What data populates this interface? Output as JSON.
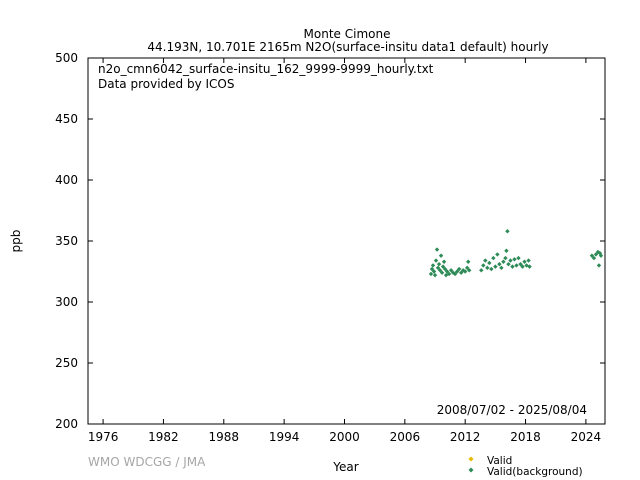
{
  "chart_data": {
    "type": "scatter",
    "title": "Monte Cimone",
    "subtitle": "44.193N, 10.701E 2165m    N2O(surface-insitu data1 default) hourly",
    "xlabel": "Year",
    "ylabel": "ppb",
    "xlim": [
      1974.5,
      2025.9
    ],
    "ylim": [
      200,
      500
    ],
    "xticks": [
      1976,
      1982,
      1988,
      1994,
      2000,
      2006,
      2012,
      2018,
      2024
    ],
    "yticks": [
      200,
      250,
      300,
      350,
      400,
      450,
      500
    ],
    "grid": false,
    "annotations": {
      "filename": "n2o_cmn6042_surface-insitu_162_9999-9999_hourly.txt",
      "provider": "Data provided by ICOS",
      "period": "2008/07/02 - 2025/08/04",
      "credit": "WMO WDCGG / JMA"
    },
    "legend": {
      "placement": "bottom-right",
      "entries": [
        {
          "name": "Valid",
          "color": "#e6b800"
        },
        {
          "name": "Valid(background)",
          "color": "#2e8b57"
        }
      ]
    },
    "series": [
      {
        "name": "Valid(background)",
        "color": "#2e8b57",
        "points": [
          [
            2008.6,
            323
          ],
          [
            2008.7,
            327
          ],
          [
            2008.8,
            330
          ],
          [
            2008.9,
            325
          ],
          [
            2009.0,
            322
          ],
          [
            2009.1,
            334
          ],
          [
            2009.2,
            343
          ],
          [
            2009.3,
            328
          ],
          [
            2009.4,
            331
          ],
          [
            2009.5,
            326
          ],
          [
            2009.6,
            338
          ],
          [
            2009.7,
            324
          ],
          [
            2009.8,
            329
          ],
          [
            2009.9,
            333
          ],
          [
            2010.0,
            327
          ],
          [
            2010.1,
            322
          ],
          [
            2010.2,
            325
          ],
          [
            2010.4,
            323
          ],
          [
            2010.6,
            326
          ],
          [
            2010.8,
            324
          ],
          [
            2011.0,
            323
          ],
          [
            2011.2,
            325
          ],
          [
            2011.4,
            327
          ],
          [
            2011.6,
            324
          ],
          [
            2011.8,
            326
          ],
          [
            2012.0,
            325
          ],
          [
            2012.2,
            328
          ],
          [
            2012.3,
            333
          ],
          [
            2012.4,
            326
          ],
          [
            2013.6,
            326
          ],
          [
            2013.8,
            330
          ],
          [
            2014.0,
            334
          ],
          [
            2014.2,
            328
          ],
          [
            2014.4,
            332
          ],
          [
            2014.6,
            327
          ],
          [
            2014.8,
            336
          ],
          [
            2015.0,
            329
          ],
          [
            2015.2,
            339
          ],
          [
            2015.4,
            331
          ],
          [
            2015.6,
            328
          ],
          [
            2015.8,
            333
          ],
          [
            2016.0,
            336
          ],
          [
            2016.1,
            342
          ],
          [
            2016.2,
            358
          ],
          [
            2016.3,
            331
          ],
          [
            2016.5,
            334
          ],
          [
            2016.7,
            329
          ],
          [
            2016.9,
            335
          ],
          [
            2017.1,
            330
          ],
          [
            2017.3,
            336
          ],
          [
            2017.5,
            331
          ],
          [
            2017.7,
            329
          ],
          [
            2017.9,
            333
          ],
          [
            2018.1,
            330
          ],
          [
            2018.3,
            334
          ],
          [
            2018.4,
            329
          ],
          [
            2024.6,
            338
          ],
          [
            2024.8,
            336
          ],
          [
            2025.0,
            339
          ],
          [
            2025.2,
            341
          ],
          [
            2025.3,
            330
          ],
          [
            2025.4,
            340
          ],
          [
            2025.5,
            338
          ]
        ]
      },
      {
        "name": "Valid",
        "color": "#e6b800",
        "points": []
      }
    ]
  }
}
